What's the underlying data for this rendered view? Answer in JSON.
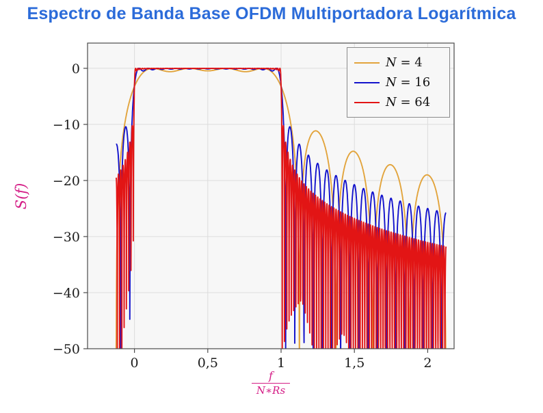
{
  "title": "Espectro de Banda Base OFDM Multiportadora Logarítmica",
  "chart_data": {
    "type": "line",
    "title": "Espectro de Banda Base OFDM Multiportadora Logarítmica",
    "xlabel": "f/(N*Rs)",
    "xlabel_numerator": "f",
    "xlabel_denominator": "N∗Rs",
    "ylabel": "S(f)",
    "xlim": [
      -0.32,
      2.18
    ],
    "ylim": [
      -50,
      4.5
    ],
    "x_data_range": [
      -0.125,
      2.125
    ],
    "floor_db": -50,
    "samples": 2600,
    "grid": true,
    "legend_position": "top-right",
    "x_ticks": [
      {
        "value": 0,
        "label": "0"
      },
      {
        "value": 0.5,
        "label": "0,5"
      },
      {
        "value": 1,
        "label": "1"
      },
      {
        "value": 1.5,
        "label": "1,5"
      },
      {
        "value": 2,
        "label": "2"
      }
    ],
    "y_ticks": [
      {
        "value": 0,
        "label": "0"
      },
      {
        "value": -10,
        "label": "−10"
      },
      {
        "value": -20,
        "label": "−20"
      },
      {
        "value": -30,
        "label": "−30"
      },
      {
        "value": -40,
        "label": "−40"
      },
      {
        "value": -50,
        "label": "−50"
      }
    ],
    "series": [
      {
        "name": "N = 4",
        "N": 4,
        "color": "#e2a43c"
      },
      {
        "name": "N = 16",
        "N": 16,
        "color": "#1212cc"
      },
      {
        "name": "N = 64",
        "N": 64,
        "color": "#e21515"
      }
    ],
    "formula": "S_dB(x) = 10*log10( sum_{k=0..N-1} sinc^2(N*x - k - 0.5) ), x = f/(N*Rs), clipped at -50 dB"
  },
  "colors": {
    "title": "#2b6bd9",
    "axis_label": "#d41d86",
    "plot_background": "#f7f7f7",
    "grid": "#dcdcdc",
    "axis_border": "#4a4a4a",
    "tick_text": "#1a1a1a",
    "legend_border": "#8a8a8a",
    "legend_background": "#f7f7f7"
  }
}
